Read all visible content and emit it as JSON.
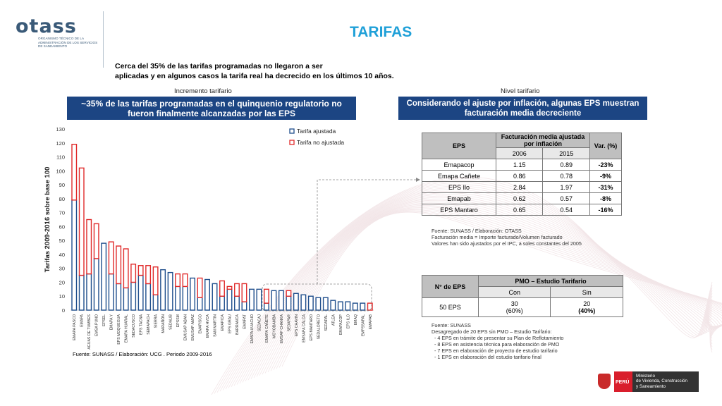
{
  "header": {
    "logo_text": "otass",
    "logo_subtext": "ORGANISMO TÉCNICO DE LA ADMINISTRACIÓN DE LOS SERVICIOS DE SANEAMIENTO",
    "title": "TARIFAS",
    "subtitle_line1": "Cerca del 35% de las tarifas programadas no llegaron a ser",
    "subtitle_line2": "aplicadas y en algunos casos la tarifa real ha decrecido en los últimos 10 años."
  },
  "left_panel": {
    "caption": "Incremento tarifario",
    "banner": "~35% de las tarifas programadas en el quinquenio regulatorio no fueron finalmente alcanzadas por las EPS",
    "source": "Fuente: SUNASS / Elaboración: UCG . Periodo 2009-2016"
  },
  "right_panel": {
    "caption": "Nivel tarifario",
    "banner": "Considerando el ajuste por inflación, algunas EPS muestran facturación media decreciente",
    "table1": {
      "col_eps": "EPS",
      "col_group": "Facturación media ajustada por inflación",
      "col_var": "Var. (%)",
      "year1": "2006",
      "year2": "2015",
      "rows": [
        {
          "eps": "Emapacop",
          "v2006": "1.15",
          "v2015": "0.89",
          "var": "-23%"
        },
        {
          "eps": "Emapa Cañete",
          "v2006": "0.86",
          "v2015": "0.78",
          "var": "-9%"
        },
        {
          "eps": "EPS Ilo",
          "v2006": "2.84",
          "v2015": "1.97",
          "var": "-31%"
        },
        {
          "eps": "Emapab",
          "v2006": "0.62",
          "v2015": "0.57",
          "var": "-8%"
        },
        {
          "eps": "EPS Mantaro",
          "v2006": "0.65",
          "v2015": "0.54",
          "var": "-16%"
        }
      ],
      "notes": [
        "Fuente: SUNASS / Elaboración: OTASS",
        "Facturación media = Importe facturado/Volumen facturado",
        "Valores han sido ajustados por el IPC, a soles constantes del 2005"
      ]
    },
    "table2": {
      "col_eps": "N° de EPS",
      "col_group": "PMO – Estudio Tarifario",
      "col_con": "Con",
      "col_sin": "Sin",
      "row_label": "50 EPS",
      "con_value": "30",
      "con_pct": "(60%)",
      "sin_value": "20",
      "sin_pct": "(40%)",
      "notes": [
        "Fuente: SUNASS",
        "Desagregado de 20 EPS sin PMO – Estudio Tarifario:",
        "- 4 EPS en trámite de presentar su Plan de Reflotamiento",
        "- 8 EPS en asistencia técnica para elaboración de PMO",
        "- 7 EPS en elaboración de proyecto de estudio tarifario",
        "- 1 EPS en elaboración del estudio tarifario final"
      ]
    }
  },
  "footer": {
    "country": "PERÚ",
    "ministry": "Ministerio de Vivienda, Construcción y Saneamiento",
    "ministry_lines": [
      "Ministerio",
      "de Vivienda, Construcción",
      "y Saneamiento"
    ]
  },
  "colors": {
    "banner": "#1c4583",
    "bar_adjusted": "#1f4e8c",
    "bar_not_adjusted": "#e02a2a",
    "title": "#1fa0d8"
  },
  "chart_data": {
    "type": "bar",
    "stacked": true,
    "ylabel": "Tarifas 2009-2016 sobre base 100",
    "ylim": [
      0,
      130
    ],
    "yticks": [
      0,
      10,
      20,
      30,
      40,
      50,
      60,
      70,
      80,
      90,
      100,
      110,
      120,
      130
    ],
    "legend": [
      "Tarifa ajustada",
      "Tarifa no ajustada"
    ],
    "legend_position": "top-right",
    "categories": [
      "EMAPA PASCO",
      "EMAPA",
      "AGUAS DE TUMBES",
      "EMSA PUNO",
      "EPSEL",
      "EMAPA Y",
      "EPS MOQUEGUA",
      "EMAPA HUARAL",
      "SEDACUSCO",
      "EPS TACNA",
      "SEMAPACH",
      "SIERRA",
      "MARAÑÓN",
      "SEDALIB",
      "EPSSM",
      "EMUSAP ABAN",
      "EMUSAP AMAZ",
      "EMAPISCO",
      "EMAPA HVCA",
      "SAN MARTIN",
      "EMAPICA",
      "EPS GRAU",
      "BARRANCA",
      "EMAPAT",
      "EMAPA HUACHO",
      "SEDACAJ",
      "EMAPA CAÑETE",
      "MOYOBAMBA",
      "EMSAP CHANKA",
      "SEDAPAR",
      "EPS CHAVIN",
      "EMSAPA CALCA",
      "EPS MANTARO",
      "SEDALORETO",
      "SEDAPAL",
      "ATLEA",
      "EMAPACOP",
      "EPS ILO",
      "EMAQ",
      "EMPSSAPAL",
      "EMAPAB"
    ],
    "series": [
      {
        "name": "Tarifa ajustada",
        "values": [
          79,
          25,
          26,
          37,
          48,
          26,
          19,
          16,
          20,
          25,
          19,
          11,
          29,
          27,
          17,
          17,
          23,
          9,
          22,
          19,
          10,
          15,
          10,
          6,
          15,
          15,
          5,
          14,
          14,
          10,
          12,
          11,
          10,
          9,
          9,
          7,
          6,
          6,
          5,
          5,
          0
        ]
      },
      {
        "name": "Tarifa no ajustada",
        "values": [
          40,
          77,
          39,
          25,
          0,
          23,
          27,
          28,
          13,
          7,
          13,
          20,
          0,
          0,
          9,
          9,
          0,
          14,
          0,
          0,
          11,
          2,
          9,
          13,
          0,
          0,
          10,
          0,
          0,
          4,
          0,
          0,
          0,
          0,
          0,
          0,
          0,
          0,
          0,
          0,
          5
        ]
      }
    ]
  }
}
